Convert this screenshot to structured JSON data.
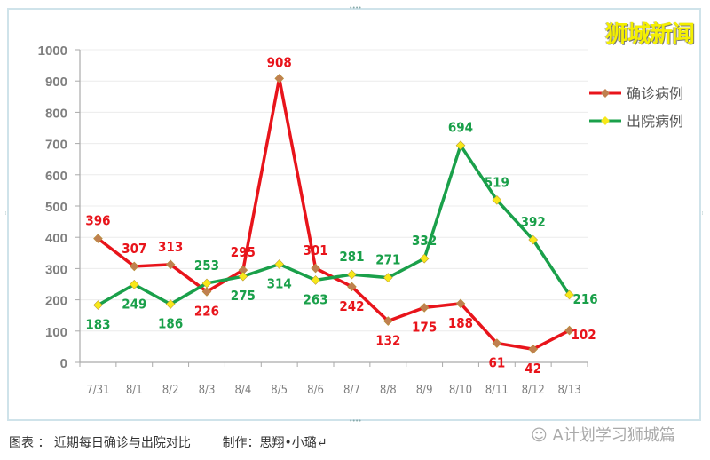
{
  "brand": "狮城新闻",
  "caption": "图表 ： 近期每日确诊与出院对比        制作：思翔•小璐↵",
  "watermark": "A计划学习狮城篇",
  "colors": {
    "confirmed": "#e8141b",
    "discharged": "#1aa04a",
    "confirmed_marker": "#c08050",
    "discharged_marker": "#f7e81a",
    "axis_text": "#7f7f7f",
    "grid": "#ececec"
  },
  "chart_data": {
    "type": "line",
    "title": "",
    "xlabel": "",
    "ylabel": "",
    "ylim": [
      0,
      1000
    ],
    "yticks": [
      0,
      100,
      200,
      300,
      400,
      500,
      600,
      700,
      800,
      900,
      1000
    ],
    "grid": true,
    "legend_position": "right",
    "categories": [
      "7/31",
      "8/1",
      "8/2",
      "8/3",
      "8/4",
      "8/5",
      "8/6",
      "8/7",
      "8/8",
      "8/9",
      "8/10",
      "8/11",
      "8/12",
      "8/13"
    ],
    "series": [
      {
        "name": "确诊病例",
        "values": [
          396,
          307,
          313,
          226,
          295,
          908,
          301,
          242,
          132,
          175,
          188,
          61,
          42,
          102
        ]
      },
      {
        "name": "出院病例",
        "values": [
          183,
          249,
          186,
          253,
          275,
          314,
          263,
          281,
          271,
          332,
          694,
          519,
          392,
          216
        ]
      }
    ]
  }
}
